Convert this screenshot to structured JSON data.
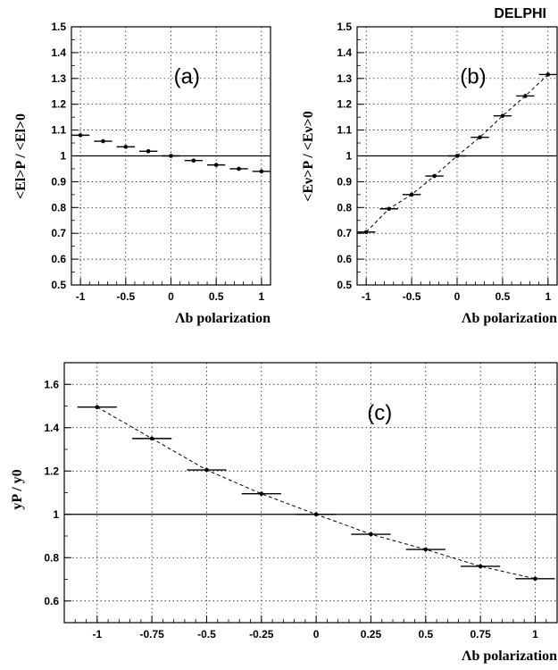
{
  "banner": "DELPHI",
  "chart_data": [
    {
      "type": "scatter",
      "panel_label": "(a)",
      "xlabel": "Λb polarization",
      "ylabel": "<El>P / <El>0",
      "xlim": [
        -1.1,
        1.1
      ],
      "ylim": [
        0.5,
        1.5
      ],
      "xticks": [
        -1,
        -0.5,
        0,
        0.5,
        1
      ],
      "xtick_labels": [
        "-1",
        "-0.5",
        "0",
        "0.5",
        "1"
      ],
      "yticks": [
        0.5,
        0.6,
        0.7,
        0.8,
        0.9,
        1,
        1.1,
        1.2,
        1.3,
        1.4,
        1.5
      ],
      "ytick_labels": [
        "0.5",
        "0.6",
        "0.7",
        "0.8",
        "0.9",
        "1",
        "1.1",
        "1.2",
        "1.3",
        "1.4",
        "1.5"
      ],
      "grid": true,
      "reference_line": 1,
      "x_halfwidth": 0.1,
      "x": [
        -1,
        -0.75,
        -0.5,
        -0.25,
        0,
        0.25,
        0.5,
        0.75,
        1
      ],
      "y": [
        1.08,
        1.057,
        1.035,
        1.018,
        1.0,
        0.982,
        0.965,
        0.95,
        0.94
      ],
      "fit_line": false
    },
    {
      "type": "scatter",
      "panel_label": "(b)",
      "xlabel": "Λb polarization",
      "ylabel": "<Eν>P / <Eν>0",
      "xlim": [
        -1.1,
        1.1
      ],
      "ylim": [
        0.5,
        1.5
      ],
      "xticks": [
        -1,
        -0.5,
        0,
        0.5,
        1
      ],
      "xtick_labels": [
        "-1",
        "-0.5",
        "0",
        "0.5",
        "1"
      ],
      "yticks": [
        0.5,
        0.6,
        0.7,
        0.8,
        0.9,
        1,
        1.1,
        1.2,
        1.3,
        1.4,
        1.5
      ],
      "ytick_labels": [
        "0.5",
        "0.6",
        "0.7",
        "0.8",
        "0.9",
        "1",
        "1.1",
        "1.2",
        "1.3",
        "1.4",
        "1.5"
      ],
      "grid": true,
      "reference_line": 1,
      "x_halfwidth": 0.1,
      "x": [
        -1,
        -0.75,
        -0.5,
        -0.25,
        0,
        0.25,
        0.5,
        0.75,
        1
      ],
      "y": [
        0.705,
        0.795,
        0.85,
        0.922,
        1.0,
        1.072,
        1.155,
        1.232,
        1.315
      ],
      "fit_line": true
    },
    {
      "type": "scatter",
      "panel_label": "(c)",
      "xlabel": "Λb polarization",
      "ylabel": "yP / y0",
      "xlim": [
        -1.15,
        1.1
      ],
      "ylim": [
        0.5,
        1.7
      ],
      "xticks": [
        -1,
        -0.75,
        -0.5,
        -0.25,
        0,
        0.25,
        0.5,
        0.75,
        1
      ],
      "xtick_labels": [
        "-1",
        "-0.75",
        "-0.5",
        "-0.25",
        "0",
        "0.25",
        "0.5",
        "0.75",
        "1"
      ],
      "yticks": [
        0.6,
        0.8,
        1,
        1.2,
        1.4,
        1.6
      ],
      "ytick_labels": [
        "0.6",
        "0.8",
        "1",
        "1.2",
        "1.4",
        "1.6"
      ],
      "grid": true,
      "reference_line": 1,
      "x_halfwidth": 0.09,
      "x": [
        -1,
        -0.75,
        -0.5,
        -0.25,
        0,
        0.25,
        0.5,
        0.75,
        1
      ],
      "y": [
        1.495,
        1.35,
        1.205,
        1.095,
        1.0,
        0.908,
        0.838,
        0.76,
        0.703
      ],
      "fit_line": true
    }
  ]
}
